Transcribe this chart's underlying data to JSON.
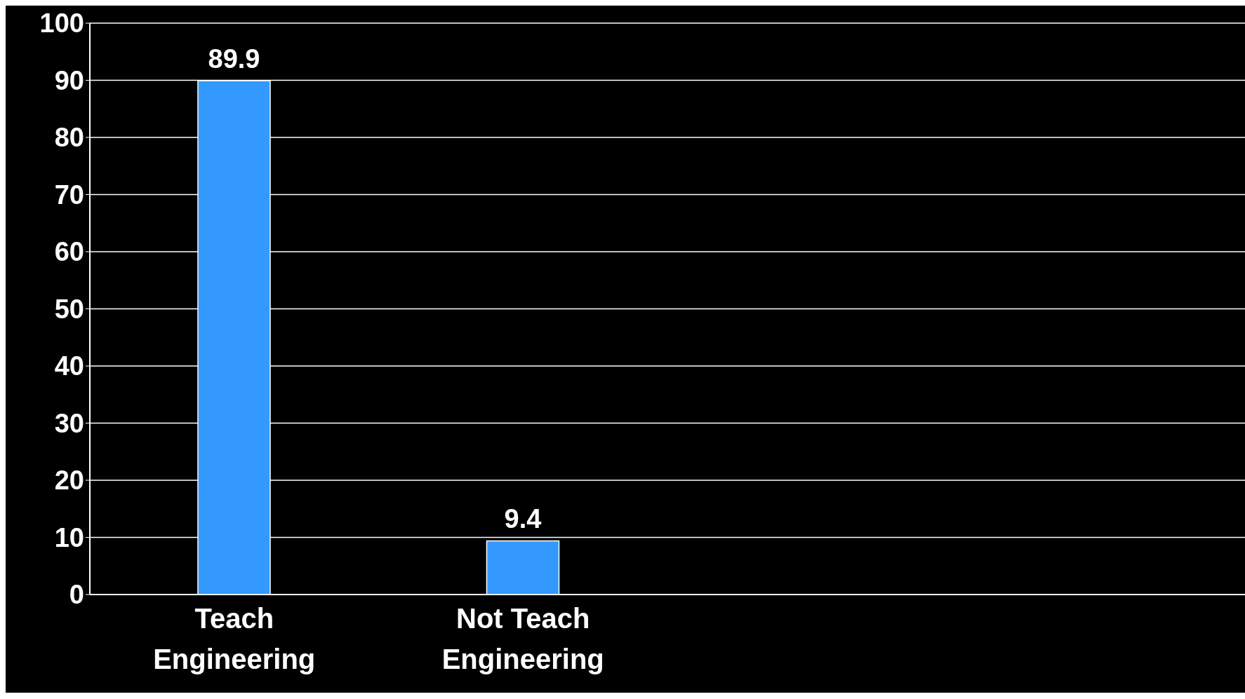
{
  "chart_data": {
    "type": "bar",
    "categories": [
      "Teach Engineering",
      "Not Teach Engineering",
      null,
      null
    ],
    "values": [
      89.9,
      9.4,
      null,
      null
    ],
    "color": "#3399ff",
    "ylim": [
      0,
      100
    ],
    "yticks": [
      0,
      10,
      20,
      30,
      40,
      50,
      60,
      70,
      80,
      90,
      100
    ],
    "grid": "y",
    "data_labels": true
  }
}
